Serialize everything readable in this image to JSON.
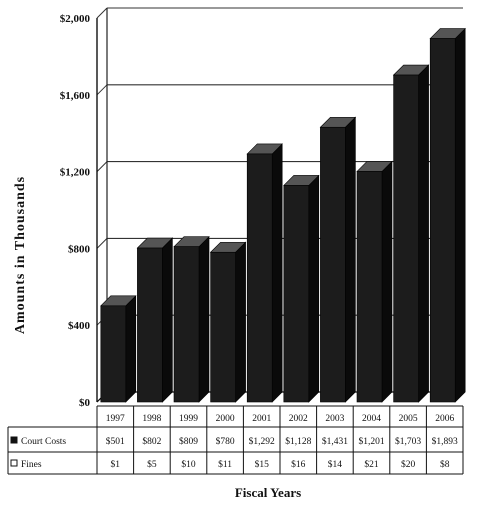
{
  "chart_data": {
    "type": "bar",
    "categories": [
      "1997",
      "1998",
      "1999",
      "2000",
      "2001",
      "2002",
      "2003",
      "2004",
      "2005",
      "2006"
    ],
    "series": [
      {
        "name": "Court Costs",
        "values": [
          501,
          802,
          809,
          780,
          1292,
          1128,
          1431,
          1201,
          1703,
          1893
        ],
        "labels": [
          "$501",
          "$802",
          "$809",
          "$780",
          "$1,292",
          "$1,128",
          "$1,431",
          "$1,201",
          "$1,703",
          "$1,893"
        ]
      },
      {
        "name": "Fines",
        "values": [
          1,
          5,
          10,
          11,
          15,
          16,
          14,
          21,
          20,
          8
        ],
        "labels": [
          "$1",
          "$5",
          "$10",
          "$11",
          "$15",
          "$16",
          "$14",
          "$21",
          "$20",
          "$8"
        ]
      }
    ],
    "ylim": [
      0,
      2000
    ],
    "yticks": [
      0,
      400,
      800,
      1200,
      1600,
      2000
    ],
    "ytick_labels": [
      "$0",
      "$400",
      "$800",
      "$1,200",
      "$1,600",
      "$2,000"
    ],
    "ylabel": "Amounts in Thousands",
    "xlabel": "Fiscal Years",
    "grid": true,
    "legend": "data-table",
    "colors": {
      "bar_front": "#1c1c1c",
      "bar_top": "#555555",
      "bar_side": "#0a0a0a",
      "grid": "#333333"
    }
  }
}
